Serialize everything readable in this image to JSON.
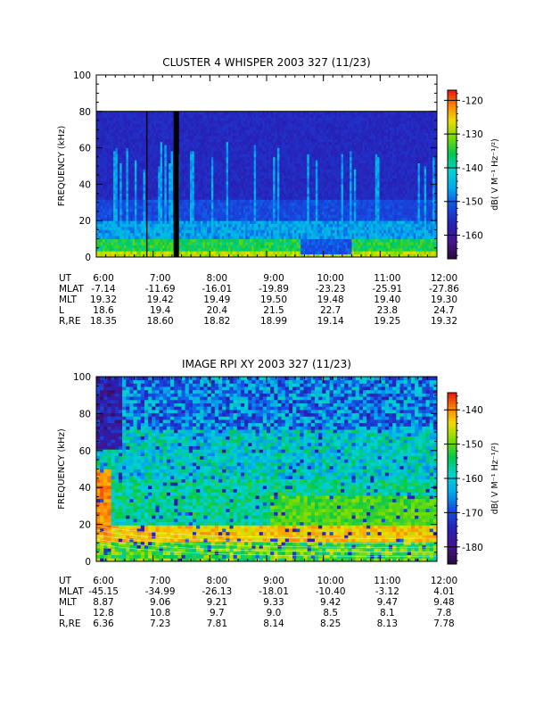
{
  "chart_data": [
    {
      "type": "heatmap",
      "title": "CLUSTER 4 WHISPER 2003 327 (11/23)",
      "ylabel": "FREQUENCY (kHz)",
      "ylim": [
        0,
        100
      ],
      "yticks": [
        0,
        20,
        40,
        60,
        80,
        100
      ],
      "xticks": [
        "6:00",
        "7:00",
        "8:00",
        "9:00",
        "10:00",
        "11:00",
        "12:00"
      ],
      "colorbar": {
        "label": "dB( V M⁻¹ Hz⁻¹/²)",
        "ticks": [
          -120,
          -130,
          -140,
          -150,
          -160
        ],
        "range": [
          -167,
          -117
        ]
      },
      "data_frequency_max": 80,
      "ephemeris": [
        {
          "label": "UT",
          "values": [
            "6:00",
            "7:00",
            "8:00",
            "9:00",
            "10:00",
            "11:00",
            "12:00"
          ]
        },
        {
          "label": "MLAT",
          "values": [
            "-7.14",
            "-11.69",
            "-16.01",
            "-19.89",
            "-23.23",
            "-25.91",
            "-27.86"
          ]
        },
        {
          "label": "MLT",
          "values": [
            "19.32",
            "19.42",
            "19.49",
            "19.50",
            "19.48",
            "19.40",
            "19.30"
          ]
        },
        {
          "label": "L",
          "values": [
            "18.6",
            "19.4",
            "20.4",
            "21.5",
            "22.7",
            "23.8",
            "24.7"
          ]
        },
        {
          "label": "R,RE",
          "values": [
            "18.35",
            "18.60",
            "18.82",
            "18.99",
            "19.14",
            "19.25",
            "19.32"
          ]
        }
      ]
    },
    {
      "type": "heatmap",
      "title": "IMAGE RPI XY 2003 327 (11/23)",
      "ylabel": "FREQUENCY (kHz)",
      "ylim": [
        0,
        100
      ],
      "yticks": [
        0,
        20,
        40,
        60,
        80,
        100
      ],
      "xticks": [
        "6:00",
        "7:00",
        "8:00",
        "9:00",
        "10:00",
        "11:00",
        "12:00"
      ],
      "colorbar": {
        "label": "dB( V M⁻¹ Hz⁻¹/²)",
        "ticks": [
          -140,
          -150,
          -160,
          -170,
          -180
        ],
        "range": [
          -185,
          -135
        ]
      },
      "ephemeris": [
        {
          "label": "UT",
          "values": [
            "6:00",
            "7:00",
            "8:00",
            "9:00",
            "10:00",
            "11:00",
            "12:00"
          ]
        },
        {
          "label": "MLAT",
          "values": [
            "-45.15",
            "-34.99",
            "-26.13",
            "-18.01",
            "-10.40",
            "-3.12",
            "4.01"
          ]
        },
        {
          "label": "MLT",
          "values": [
            "8.87",
            "9.06",
            "9.21",
            "9.33",
            "9.42",
            "9.47",
            "9.48"
          ]
        },
        {
          "label": "L",
          "values": [
            "12.8",
            "10.8",
            "9.7",
            "9.0",
            "8.5",
            "8.1",
            "7.8"
          ]
        },
        {
          "label": "R,RE",
          "values": [
            "6.36",
            "7.23",
            "7.81",
            "8.14",
            "8.25",
            "8.13",
            "7.78"
          ]
        }
      ]
    }
  ]
}
